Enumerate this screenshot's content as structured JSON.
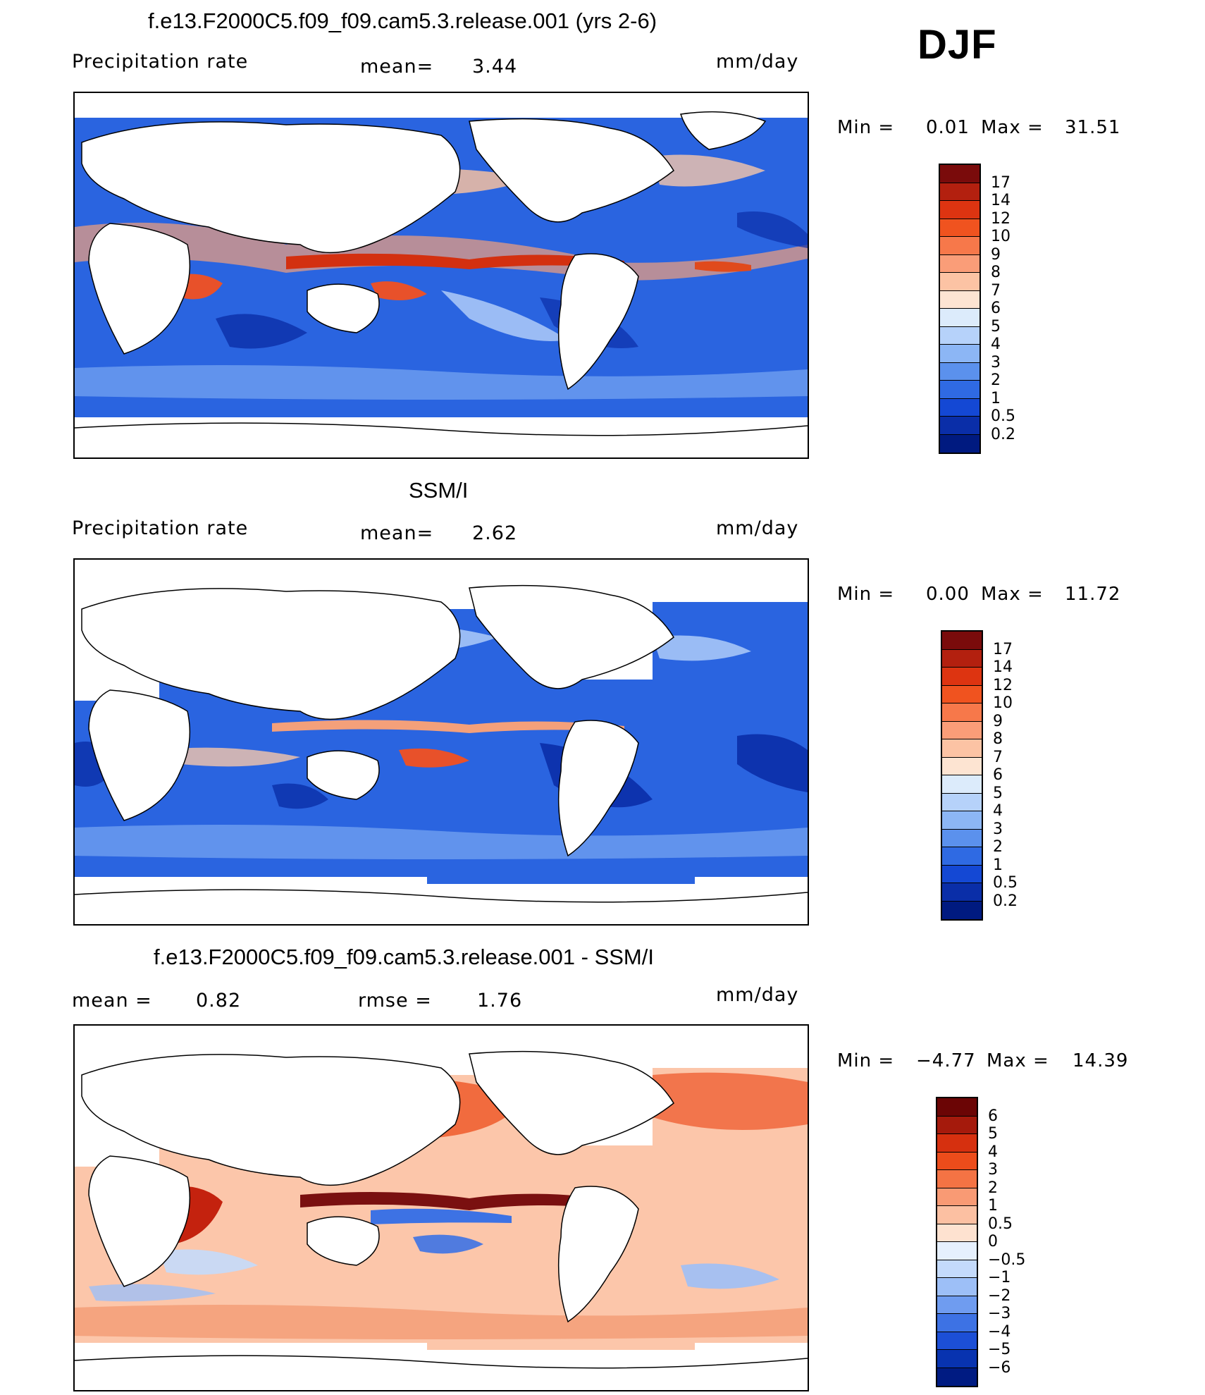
{
  "season": "DJF",
  "units": "mm/day",
  "panels": [
    {
      "title": "f.e13.F2000C5.f09_f09.cam5.3.release.001 (yrs 2-6)",
      "left_label": "Precipitation rate",
      "center_label": "mean=",
      "center_value": "3.44",
      "right_label": "mm/day",
      "min_label": "Min =",
      "min_value": "0.01",
      "max_label": "Max =",
      "max_value": "31.51",
      "colorbar_labels": [
        "17",
        "14",
        "12",
        "10",
        "9",
        "8",
        "7",
        "6",
        "5",
        "4",
        "3",
        "2",
        "1",
        "0.5",
        "0.2"
      ],
      "colorbar_colors": [
        "#7a0b0b",
        "#b3200f",
        "#dd3411",
        "#f0531f",
        "#f7784a",
        "#fa9d78",
        "#fcc3a4",
        "#fde4d2",
        "#dcebfb",
        "#b6d2fa",
        "#8cb6f5",
        "#5b91ed",
        "#2f6ae3",
        "#1448d4",
        "#0a2ea8",
        "#001a80"
      ]
    },
    {
      "title": "SSM/I",
      "left_label": "Precipitation rate",
      "center_label": "mean=",
      "center_value": "2.62",
      "right_label": "mm/day",
      "min_label": "Min =",
      "min_value": "0.00",
      "max_label": "Max =",
      "max_value": "11.72",
      "colorbar_labels": [
        "17",
        "14",
        "12",
        "10",
        "9",
        "8",
        "7",
        "6",
        "5",
        "4",
        "3",
        "2",
        "1",
        "0.5",
        "0.2"
      ],
      "colorbar_colors": [
        "#7a0b0b",
        "#b3200f",
        "#dd3411",
        "#f0531f",
        "#f7784a",
        "#fa9d78",
        "#fcc3a4",
        "#fde4d2",
        "#dcebfb",
        "#b6d2fa",
        "#8cb6f5",
        "#5b91ed",
        "#2f6ae3",
        "#1448d4",
        "#0a2ea8",
        "#001a80"
      ]
    },
    {
      "title": "f.e13.F2000C5.f09_f09.cam5.3.release.001 - SSM/I",
      "left_label": "mean =",
      "left_value": "0.82",
      "center_label": "rmse =",
      "center_value": "1.76",
      "right_label": "mm/day",
      "min_label": "Min =",
      "min_value": "−4.77",
      "max_label": "Max =",
      "max_value": "14.39",
      "colorbar_labels": [
        "6",
        "5",
        "4",
        "3",
        "2",
        "1",
        "0.5",
        "0",
        "−0.5",
        "−1",
        "−2",
        "−3",
        "−4",
        "−5",
        "−6"
      ],
      "colorbar_colors": [
        "#6b0505",
        "#a51a0c",
        "#d6300f",
        "#ec4c1b",
        "#f47344",
        "#f99a74",
        "#fcc0a2",
        "#fee2d0",
        "#e6f0fd",
        "#c4dafb",
        "#9dbff7",
        "#6f9cf0",
        "#3d72e4",
        "#1c4fd6",
        "#0833b0",
        "#001b82"
      ]
    }
  ]
}
